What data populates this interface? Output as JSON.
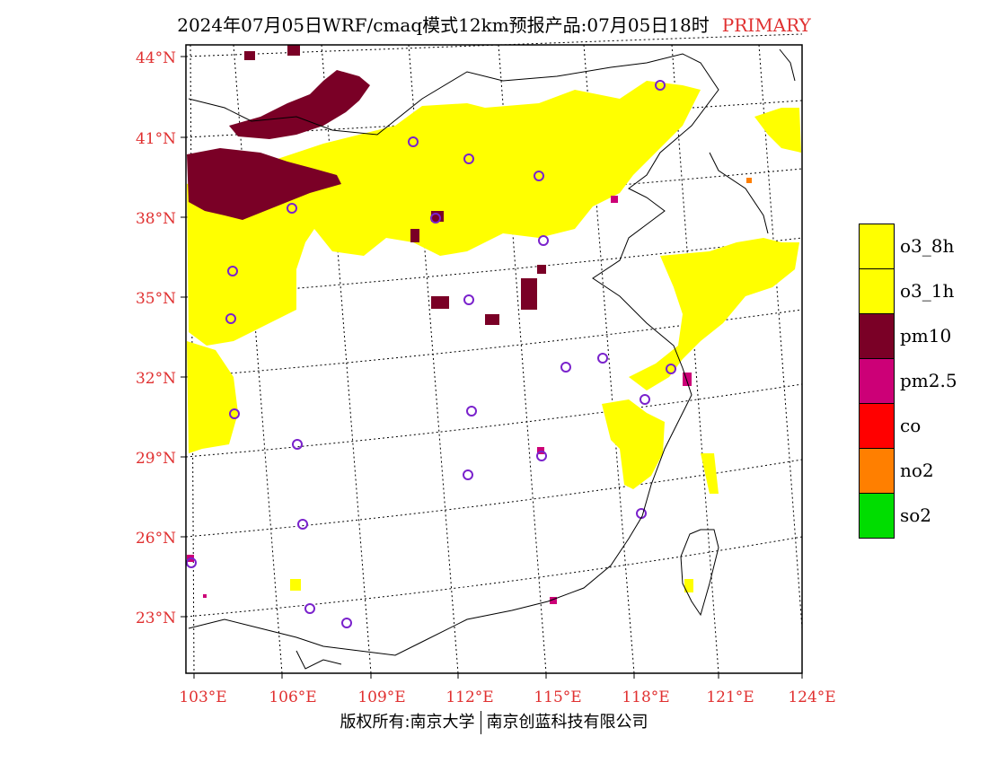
{
  "title": {
    "text": "2024年07月05日WRF/cmaq模式12km预报产品:07月05日18时",
    "tag": "PRIMARY"
  },
  "axes": {
    "lat_labels": [
      "44°N",
      "41°N",
      "38°N",
      "35°N",
      "32°N",
      "29°N",
      "26°N",
      "23°N"
    ],
    "lon_labels": [
      "103°E",
      "106°E",
      "109°E",
      "112°E",
      "115°E",
      "118°E",
      "121°E",
      "124°E"
    ],
    "label_color": "#e03030"
  },
  "legend": [
    {
      "label": "o3_8h",
      "color": "#ffff00"
    },
    {
      "label": "o3_1h",
      "color": "#ffff00"
    },
    {
      "label": "pm10",
      "color": "#7a0026"
    },
    {
      "label": "pm2.5",
      "color": "#cc0077"
    },
    {
      "label": "co",
      "color": "#ff0000"
    },
    {
      "label": "no2",
      "color": "#ff7f00"
    },
    {
      "label": "so2",
      "color": "#00dd00"
    }
  ],
  "footer": {
    "left": "版权所有:南京大学",
    "right": "南京创蓝科技有限公司"
  }
}
